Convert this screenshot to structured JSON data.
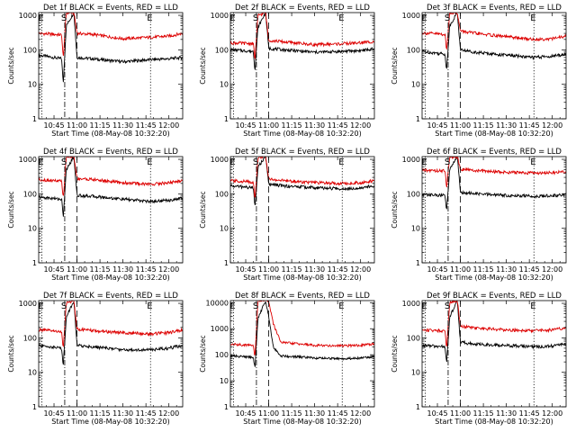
{
  "figure": {
    "background": "#ffffff",
    "colors": {
      "events": "#000000",
      "lld": "#dd0000",
      "axis": "#000000"
    }
  },
  "chart_data": [
    {
      "type": "line",
      "title": "Det 1f BLACK = Events, RED = LLD",
      "xlabel": "Start Time (08-May-08 10:32:20)",
      "ylabel": "Counts/sec",
      "yscale": "log",
      "ylim": [
        1,
        1200
      ],
      "xlim": [
        "10:35",
        "12:09"
      ],
      "xticks": [
        "10:45",
        "11:00",
        "11:15",
        "11:30",
        "11:45",
        "12:00"
      ],
      "yticks": [
        1,
        10,
        100,
        1000
      ],
      "markers": [
        {
          "label": "E",
          "time": "10:37",
          "style": "dotted"
        },
        {
          "label": "S",
          "time": "10:52",
          "style": "dash-dot"
        },
        {
          "label": "",
          "time": "11:00",
          "style": "dashed"
        },
        {
          "label": "E",
          "time": "11:48",
          "style": "dotted"
        }
      ],
      "series": [
        {
          "name": "Events",
          "color": "#000000",
          "x": [
            "10:35",
            "10:50",
            "10:51",
            "10:53",
            "10:58",
            "11:00",
            "11:10",
            "11:30",
            "11:48",
            "12:00",
            "12:09"
          ],
          "y": [
            70,
            55,
            10,
            500,
            1200,
            60,
            55,
            45,
            52,
            55,
            60
          ]
        },
        {
          "name": "LLD",
          "color": "#dd0000",
          "x": [
            "10:35",
            "10:50",
            "10:51",
            "10:53",
            "10:58",
            "11:00",
            "11:10",
            "11:30",
            "11:48",
            "12:00",
            "12:09"
          ],
          "y": [
            300,
            270,
            55,
            1200,
            1200,
            300,
            280,
            210,
            230,
            250,
            300
          ]
        }
      ]
    },
    {
      "type": "line",
      "title": "Det 2f BLACK = Events, RED = LLD",
      "xlabel": "Start Time (08-May-08 10:32:20)",
      "ylabel": "Counts/sec",
      "yscale": "log",
      "ylim": [
        1,
        1200
      ],
      "xlim": [
        "10:35",
        "12:09"
      ],
      "xticks": [
        "10:45",
        "11:00",
        "11:15",
        "11:30",
        "11:45",
        "12:00"
      ],
      "yticks": [
        1,
        10,
        100,
        1000
      ],
      "markers": [
        {
          "label": "E",
          "time": "10:37",
          "style": "dotted"
        },
        {
          "label": "S",
          "time": "10:52",
          "style": "dash-dot"
        },
        {
          "label": "",
          "time": "11:00",
          "style": "dashed"
        },
        {
          "label": "E",
          "time": "11:48",
          "style": "dotted"
        }
      ],
      "series": [
        {
          "name": "Events",
          "color": "#000000",
          "x": [
            "10:35",
            "10:50",
            "10:51",
            "10:53",
            "10:58",
            "11:00",
            "11:10",
            "11:30",
            "11:48",
            "12:00",
            "12:09"
          ],
          "y": [
            100,
            90,
            25,
            450,
            1200,
            110,
            100,
            85,
            90,
            95,
            105
          ]
        },
        {
          "name": "LLD",
          "color": "#dd0000",
          "x": [
            "10:35",
            "10:50",
            "10:51",
            "10:53",
            "10:58",
            "11:00",
            "11:10",
            "11:30",
            "11:48",
            "12:00",
            "12:09"
          ],
          "y": [
            160,
            150,
            50,
            1000,
            1200,
            190,
            170,
            140,
            150,
            160,
            175
          ]
        }
      ]
    },
    {
      "type": "line",
      "title": "Det 3f BLACK = Events, RED = LLD",
      "xlabel": "Start Time (08-May-08 10:32:20)",
      "ylabel": "Counts/sec",
      "yscale": "log",
      "ylim": [
        1,
        1200
      ],
      "xlim": [
        "10:35",
        "12:09"
      ],
      "xticks": [
        "10:45",
        "11:00",
        "11:15",
        "11:30",
        "11:45",
        "12:00"
      ],
      "yticks": [
        1,
        10,
        100,
        1000
      ],
      "markers": [
        {
          "label": "E",
          "time": "10:37",
          "style": "dotted"
        },
        {
          "label": "S",
          "time": "10:52",
          "style": "dash-dot"
        },
        {
          "label": "",
          "time": "11:00",
          "style": "dashed"
        },
        {
          "label": "E",
          "time": "11:48",
          "style": "dotted"
        }
      ],
      "series": [
        {
          "name": "Events",
          "color": "#000000",
          "x": [
            "10:35",
            "10:50",
            "10:51",
            "10:53",
            "10:58",
            "11:00",
            "11:10",
            "11:30",
            "11:48",
            "12:00",
            "12:09"
          ],
          "y": [
            90,
            75,
            25,
            500,
            1200,
            100,
            85,
            70,
            60,
            65,
            75
          ]
        },
        {
          "name": "LLD",
          "color": "#dd0000",
          "x": [
            "10:35",
            "10:50",
            "10:51",
            "10:53",
            "10:58",
            "11:00",
            "11:10",
            "11:30",
            "11:48",
            "12:00",
            "12:09"
          ],
          "y": [
            310,
            280,
            90,
            1200,
            1200,
            350,
            300,
            240,
            200,
            210,
            250
          ]
        }
      ]
    },
    {
      "type": "line",
      "title": "Det 4f BLACK = Events, RED = LLD",
      "xlabel": "Start Time (08-May-08 10:32:20)",
      "ylabel": "Counts/sec",
      "yscale": "log",
      "ylim": [
        1,
        1200
      ],
      "xlim": [
        "10:35",
        "12:09"
      ],
      "xticks": [
        "10:45",
        "11:00",
        "11:15",
        "11:30",
        "11:45",
        "12:00"
      ],
      "yticks": [
        1,
        10,
        100,
        1000
      ],
      "markers": [
        {
          "label": "E",
          "time": "10:37",
          "style": "dotted"
        },
        {
          "label": "S",
          "time": "10:52",
          "style": "dash-dot"
        },
        {
          "label": "",
          "time": "11:00",
          "style": "dashed"
        },
        {
          "label": "E",
          "time": "11:48",
          "style": "dotted"
        }
      ],
      "series": [
        {
          "name": "Events",
          "color": "#000000",
          "x": [
            "10:35",
            "10:50",
            "10:51",
            "10:53",
            "10:58",
            "11:00",
            "11:10",
            "11:30",
            "11:48",
            "12:00",
            "12:09"
          ],
          "y": [
            80,
            70,
            20,
            500,
            1200,
            90,
            85,
            70,
            60,
            65,
            75
          ]
        },
        {
          "name": "LLD",
          "color": "#dd0000",
          "x": [
            "10:35",
            "10:50",
            "10:51",
            "10:53",
            "10:58",
            "11:00",
            "11:10",
            "11:30",
            "11:48",
            "12:00",
            "12:09"
          ],
          "y": [
            260,
            230,
            70,
            1200,
            1200,
            280,
            260,
            210,
            190,
            210,
            240
          ]
        }
      ]
    },
    {
      "type": "line",
      "title": "Det 5f BLACK = Events, RED = LLD",
      "xlabel": "Start Time (08-May-08 10:32:20)",
      "ylabel": "Counts/sec",
      "yscale": "log",
      "ylim": [
        1,
        1200
      ],
      "xlim": [
        "10:35",
        "12:09"
      ],
      "xticks": [
        "10:45",
        "11:00",
        "11:15",
        "11:30",
        "11:45",
        "12:00"
      ],
      "yticks": [
        1,
        10,
        100,
        1000
      ],
      "markers": [
        {
          "label": "E",
          "time": "10:37",
          "style": "dotted"
        },
        {
          "label": "S",
          "time": "10:52",
          "style": "dash-dot"
        },
        {
          "label": "",
          "time": "11:00",
          "style": "dashed"
        },
        {
          "label": "E",
          "time": "11:48",
          "style": "dotted"
        }
      ],
      "series": [
        {
          "name": "Events",
          "color": "#000000",
          "x": [
            "10:35",
            "10:50",
            "10:51",
            "10:53",
            "10:58",
            "11:00",
            "11:10",
            "11:30",
            "11:48",
            "12:00",
            "12:09"
          ],
          "y": [
            170,
            150,
            40,
            600,
            1200,
            190,
            170,
            150,
            140,
            150,
            170
          ]
        },
        {
          "name": "LLD",
          "color": "#dd0000",
          "x": [
            "10:35",
            "10:50",
            "10:51",
            "10:53",
            "10:58",
            "11:00",
            "11:10",
            "11:30",
            "11:48",
            "12:00",
            "12:09"
          ],
          "y": [
            240,
            220,
            70,
            1100,
            1200,
            270,
            240,
            210,
            200,
            210,
            240
          ]
        }
      ]
    },
    {
      "type": "line",
      "title": "Det 6f BLACK = Events, RED = LLD",
      "xlabel": "Start Time (08-May-08 10:32:20)",
      "ylabel": "Counts/sec",
      "yscale": "log",
      "ylim": [
        1,
        1200
      ],
      "xlim": [
        "10:35",
        "12:09"
      ],
      "xticks": [
        "10:45",
        "11:00",
        "11:15",
        "11:30",
        "11:45",
        "12:00"
      ],
      "yticks": [
        1,
        10,
        100,
        1000
      ],
      "markers": [
        {
          "label": "E",
          "time": "10:37",
          "style": "dotted"
        },
        {
          "label": "S",
          "time": "10:52",
          "style": "dash-dot"
        },
        {
          "label": "",
          "time": "11:00",
          "style": "dashed"
        },
        {
          "label": "E",
          "time": "11:48",
          "style": "dotted"
        }
      ],
      "series": [
        {
          "name": "Events",
          "color": "#000000",
          "x": [
            "10:35",
            "10:50",
            "10:51",
            "10:53",
            "10:58",
            "11:00",
            "11:10",
            "11:30",
            "11:48",
            "12:00",
            "12:09"
          ],
          "y": [
            95,
            90,
            30,
            500,
            1200,
            110,
            100,
            90,
            85,
            88,
            95
          ]
        },
        {
          "name": "LLD",
          "color": "#dd0000",
          "x": [
            "10:35",
            "10:50",
            "10:51",
            "10:53",
            "10:58",
            "11:00",
            "11:10",
            "11:30",
            "11:48",
            "12:00",
            "12:09"
          ],
          "y": [
            480,
            460,
            150,
            1200,
            1200,
            520,
            470,
            420,
            400,
            410,
            430
          ]
        }
      ]
    },
    {
      "type": "line",
      "title": "Det 7f BLACK = Events, RED = LLD",
      "xlabel": "Start Time (08-May-08 10:32:20)",
      "ylabel": "Counts/sec",
      "yscale": "log",
      "ylim": [
        1,
        1200
      ],
      "xlim": [
        "10:35",
        "12:09"
      ],
      "xticks": [
        "10:45",
        "11:00",
        "11:15",
        "11:30",
        "11:45",
        "12:00"
      ],
      "yticks": [
        1,
        10,
        100,
        1000
      ],
      "markers": [
        {
          "label": "E",
          "time": "10:37",
          "style": "dotted"
        },
        {
          "label": "S",
          "time": "10:52",
          "style": "dash-dot"
        },
        {
          "label": "",
          "time": "11:00",
          "style": "dashed"
        },
        {
          "label": "E",
          "time": "11:48",
          "style": "dotted"
        }
      ],
      "series": [
        {
          "name": "Events",
          "color": "#000000",
          "x": [
            "10:35",
            "10:50",
            "10:51",
            "10:53",
            "10:58",
            "11:00",
            "11:10",
            "11:30",
            "11:48",
            "12:00",
            "12:09"
          ],
          "y": [
            60,
            50,
            15,
            400,
            1200,
            60,
            55,
            45,
            45,
            50,
            60
          ]
        },
        {
          "name": "LLD",
          "color": "#dd0000",
          "x": [
            "10:35",
            "10:50",
            "10:51",
            "10:53",
            "10:58",
            "11:00",
            "11:10",
            "11:30",
            "11:48",
            "12:00",
            "12:09"
          ],
          "y": [
            170,
            150,
            45,
            1000,
            1200,
            180,
            160,
            140,
            130,
            140,
            170
          ]
        }
      ]
    },
    {
      "type": "line",
      "title": "Det 8f BLACK = Events, RED = LLD",
      "xlabel": "Start Time (08-May-08 10:32:20)",
      "ylabel": "Counts/sec",
      "yscale": "log",
      "ylim": [
        1,
        12000
      ],
      "xlim": [
        "10:35",
        "12:09"
      ],
      "xticks": [
        "10:45",
        "11:00",
        "11:15",
        "11:30",
        "11:45",
        "12:00"
      ],
      "yticks": [
        1,
        10,
        100,
        1000,
        10000
      ],
      "markers": [
        {
          "label": "E",
          "time": "10:37",
          "style": "dotted"
        },
        {
          "label": "S",
          "time": "10:52",
          "style": "dash-dot"
        },
        {
          "label": "",
          "time": "11:00",
          "style": "dashed"
        },
        {
          "label": "E",
          "time": "11:48",
          "style": "dotted"
        }
      ],
      "series": [
        {
          "name": "Events",
          "color": "#000000",
          "x": [
            "10:35",
            "10:50",
            "10:51",
            "10:53",
            "10:58",
            "11:00",
            "11:03",
            "11:08",
            "11:30",
            "11:48",
            "12:00",
            "12:09"
          ],
          "y": [
            90,
            80,
            30,
            2500,
            12000,
            3000,
            200,
            90,
            75,
            70,
            75,
            85
          ]
        },
        {
          "name": "LLD",
          "color": "#dd0000",
          "x": [
            "10:35",
            "10:50",
            "10:51",
            "10:53",
            "10:58",
            "11:00",
            "11:03",
            "11:08",
            "11:30",
            "11:48",
            "12:00",
            "12:09"
          ],
          "y": [
            250,
            230,
            80,
            12000,
            12000,
            12000,
            1500,
            300,
            230,
            220,
            230,
            260
          ]
        }
      ]
    },
    {
      "type": "line",
      "title": "Det 9f BLACK = Events, RED = LLD",
      "xlabel": "Start Time (08-May-08 10:32:20)",
      "ylabel": "Counts/sec",
      "yscale": "log",
      "ylim": [
        1,
        1200
      ],
      "xlim": [
        "10:35",
        "12:09"
      ],
      "xticks": [
        "10:45",
        "11:00",
        "11:15",
        "11:30",
        "11:45",
        "12:00"
      ],
      "yticks": [
        1,
        10,
        100,
        1000
      ],
      "markers": [
        {
          "label": "E",
          "time": "10:37",
          "style": "dotted"
        },
        {
          "label": "S",
          "time": "10:52",
          "style": "dash-dot"
        },
        {
          "label": "",
          "time": "11:00",
          "style": "dashed"
        },
        {
          "label": "E",
          "time": "11:48",
          "style": "dotted"
        }
      ],
      "series": [
        {
          "name": "Events",
          "color": "#000000",
          "x": [
            "10:35",
            "10:50",
            "10:51",
            "10:53",
            "10:58",
            "11:00",
            "11:10",
            "11:30",
            "11:48",
            "12:00",
            "12:09"
          ],
          "y": [
            60,
            55,
            18,
            400,
            1200,
            75,
            65,
            60,
            55,
            58,
            65
          ]
        },
        {
          "name": "LLD",
          "color": "#dd0000",
          "x": [
            "10:35",
            "10:50",
            "10:51",
            "10:53",
            "10:58",
            "11:00",
            "11:10",
            "11:30",
            "11:48",
            "12:00",
            "12:09"
          ],
          "y": [
            170,
            160,
            50,
            1100,
            1200,
            220,
            190,
            170,
            160,
            170,
            190
          ]
        }
      ]
    }
  ]
}
